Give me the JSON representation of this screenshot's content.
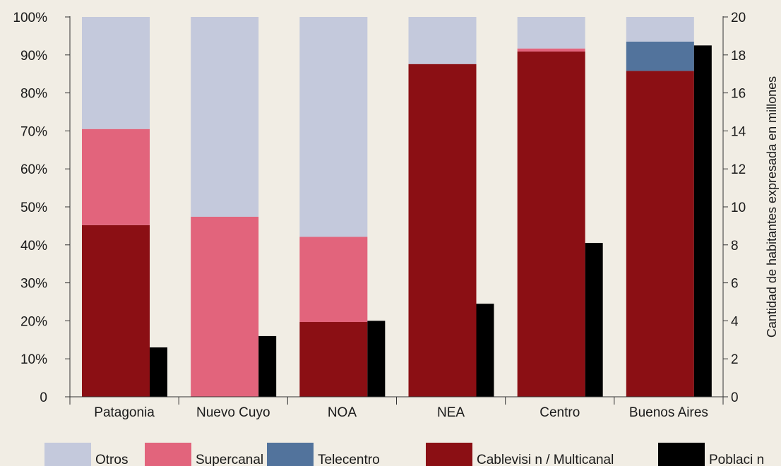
{
  "chart_data": {
    "type": "bar",
    "stacked": true,
    "categories": [
      "Patagonia",
      "Nuevo Cuyo",
      "NOA",
      "NEA",
      "Centro",
      "Buenos Aires"
    ],
    "series": [
      {
        "name": "Cablevisi n / Multicanal",
        "axis": "left",
        "color": "#8b0f14",
        "values": [
          45.2,
          0,
          19.7,
          87.6,
          90.9,
          85.8
        ]
      },
      {
        "name": "Telecentro",
        "axis": "left",
        "color": "#52739c",
        "values": [
          0,
          0,
          0,
          0,
          0,
          7.7
        ]
      },
      {
        "name": "Supercanal",
        "axis": "left",
        "color": "#e2647c",
        "values": [
          25.3,
          47.4,
          22.4,
          0,
          0.8,
          0
        ]
      },
      {
        "name": "Otros",
        "axis": "left",
        "color": "#c4c9dc",
        "values": [
          29.5,
          52.6,
          57.9,
          12.4,
          8.3,
          6.5
        ]
      },
      {
        "name": "Poblaci n",
        "axis": "right",
        "color": "#000000",
        "values": [
          2.6,
          3.2,
          4.0,
          4.9,
          8.1,
          18.5
        ]
      }
    ],
    "left_axis": {
      "ylim": [
        0,
        100
      ],
      "ticks": [
        "0",
        "10%",
        "20%",
        "30%",
        "40%",
        "50%",
        "60%",
        "70%",
        "80%",
        "90%",
        "100%"
      ]
    },
    "right_axis": {
      "ylim": [
        0,
        20
      ],
      "ticks": [
        "0",
        "2",
        "4",
        "6",
        "8",
        "10",
        "12",
        "14",
        "16",
        "18",
        "20"
      ],
      "label": "Cantidad de habitantes expresada en millones"
    },
    "legend": {
      "position": "bottom",
      "items": [
        {
          "label": "Otros",
          "color": "#c4c9dc"
        },
        {
          "label": "Supercanal",
          "color": "#e2647c"
        },
        {
          "label": "Telecentro",
          "color": "#52739c"
        },
        {
          "label": "Cablevisi n / Multicanal",
          "color": "#8b0f14"
        },
        {
          "label": "Poblaci n",
          "color": "#000000"
        }
      ]
    },
    "grid": false
  }
}
